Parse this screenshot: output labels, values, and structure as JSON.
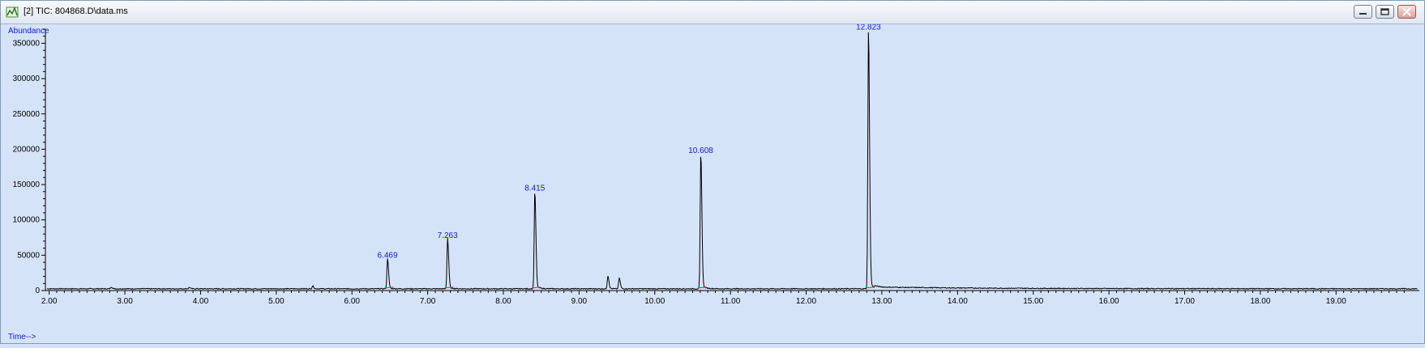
{
  "window": {
    "title": "[2] TIC: 804868.D\\data.ms",
    "icon": "chromatogram-app-icon",
    "controls": [
      "minimize-icon",
      "restore-icon",
      "close-icon"
    ]
  },
  "chart_data": {
    "type": "line",
    "ylabel": "Abundance",
    "xlabel": "Time-->",
    "xlim": [
      1.95,
      20.1
    ],
    "ylim": [
      0,
      370000
    ],
    "x_ticks": [
      "2.00",
      "3.00",
      "4.00",
      "5.00",
      "6.00",
      "7.00",
      "8.00",
      "9.00",
      "10.00",
      "11.00",
      "12.00",
      "13.00",
      "14.00",
      "15.00",
      "16.00",
      "17.00",
      "18.00",
      "19.00"
    ],
    "y_ticks": [
      "0",
      "50000",
      "100000",
      "150000",
      "200000",
      "250000",
      "300000",
      "350000"
    ],
    "grid": false,
    "series": [
      {
        "line_color": "#000000",
        "baseline": 2500,
        "peaks": [
          {
            "rt": 2.82,
            "height": 2500
          },
          {
            "rt": 3.85,
            "height": 2000
          },
          {
            "rt": 5.48,
            "height": 4000
          },
          {
            "rt": 6.469,
            "height": 42000
          },
          {
            "rt": 7.263,
            "height": 70000
          },
          {
            "rt": 8.415,
            "height": 137000
          },
          {
            "rt": 9.38,
            "height": 18000
          },
          {
            "rt": 9.53,
            "height": 15000
          },
          {
            "rt": 10.608,
            "height": 190000
          },
          {
            "rt": 12.823,
            "height": 365000
          }
        ]
      }
    ],
    "peak_labels": [
      {
        "rt": 6.469,
        "height": 42000,
        "text": "6.469"
      },
      {
        "rt": 7.263,
        "height": 70000,
        "text": "7.263"
      },
      {
        "rt": 8.415,
        "height": 137000,
        "text": "8.415"
      },
      {
        "rt": 10.608,
        "height": 190000,
        "text": "10.608"
      },
      {
        "rt": 12.823,
        "height": 365000,
        "text": "12.823"
      }
    ],
    "integration_marker_color": "#e0304a",
    "label_color": "#1515d0"
  }
}
